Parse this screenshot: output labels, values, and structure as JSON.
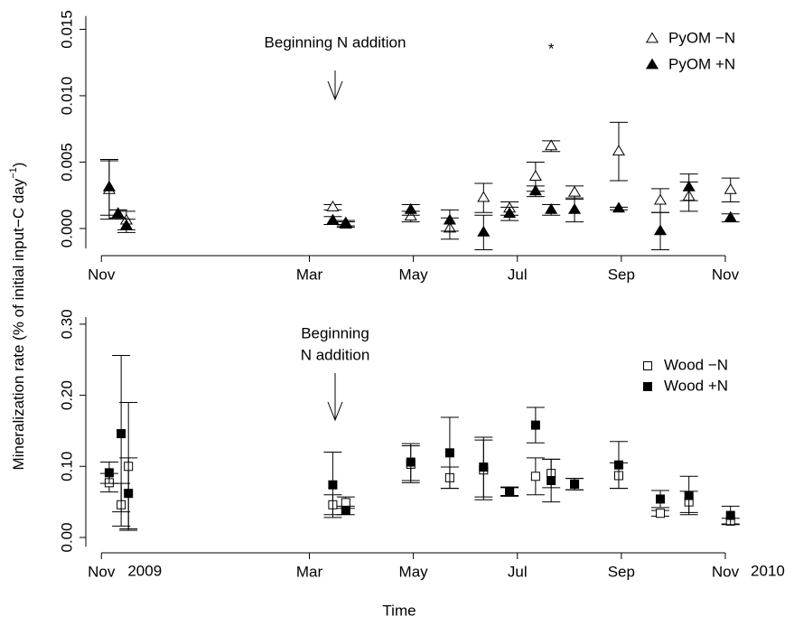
{
  "chart_data": [
    {
      "type": "scatter",
      "annotation": [
        "Beginning N addition"
      ],
      "significance": "*",
      "significance_x": 8.65,
      "x": [
        0.15,
        0.32,
        0.48,
        4.45,
        4.7,
        5.95,
        6.7,
        7.35,
        7.85,
        8.35,
        8.65,
        9.1,
        9.95,
        10.75,
        11.3,
        12.1
      ],
      "xlim": [
        -0.3,
        12.4
      ],
      "xticks": [
        {
          "value": 0,
          "label": "Nov"
        },
        {
          "value": 4,
          "label": "Mar"
        },
        {
          "value": 6,
          "label": "May"
        },
        {
          "value": 8,
          "label": "Jul"
        },
        {
          "value": 10,
          "label": "Sep"
        },
        {
          "value": 12,
          "label": "Nov"
        }
      ],
      "ylim": [
        -0.0015,
        0.016
      ],
      "yticks": [
        {
          "value": 0,
          "label": "0.000"
        },
        {
          "value": 0.005,
          "label": "0.005"
        },
        {
          "value": 0.01,
          "label": "0.010"
        },
        {
          "value": 0.015,
          "label": "0.015"
        }
      ],
      "series": [
        {
          "name": "PyOM −N",
          "marker": "triangle",
          "filled": false,
          "color": "#000000",
          "values": [
            0.0029,
            0.0011,
            0.0006,
            0.0016,
            0.0004,
            0.0009,
            0.0,
            0.0023,
            0.0015,
            0.0039,
            0.0062,
            0.0027,
            0.0058,
            0.0021,
            0.0024,
            0.0029
          ],
          "errors": [
            0.0022,
            0.0003,
            0.0007,
            0.0002,
            0.0002,
            0.0004,
            0.0008,
            0.0011,
            0.0005,
            0.0011,
            0.0004,
            0.0005,
            0.0022,
            0.0009,
            0.0011,
            0.0009
          ]
        },
        {
          "name": "PyOM +N",
          "marker": "triangle",
          "filled": true,
          "color": "#000000",
          "values": [
            0.0031,
            0.0011,
            0.0002,
            0.0006,
            0.0003,
            0.0014,
            0.0006,
            -0.0003,
            0.0011,
            0.0028,
            0.0014,
            0.0014,
            0.0015,
            -0.0002,
            0.0031,
            0.0008
          ],
          "errors": [
            0.0021,
            0.0003,
            0.0005,
            0.0003,
            0.0002,
            0.0004,
            0.0008,
            0.0013,
            0.0005,
            0.0004,
            0.0004,
            0.0009,
            0.0001,
            0.0014,
            0.001,
            0.0003
          ]
        }
      ]
    },
    {
      "type": "scatter",
      "annotation": [
        "Beginning",
        "N addition"
      ],
      "year_labels": [
        "2009",
        "2010"
      ],
      "x": [
        0.15,
        0.38,
        0.52,
        4.45,
        4.7,
        5.95,
        6.7,
        7.35,
        7.85,
        8.35,
        8.65,
        9.1,
        9.95,
        10.75,
        11.3,
        12.1
      ],
      "xlim": [
        -0.3,
        12.4
      ],
      "xticks": [
        {
          "value": 0,
          "label": "Nov"
        },
        {
          "value": 4,
          "label": "Mar"
        },
        {
          "value": 6,
          "label": "May"
        },
        {
          "value": 8,
          "label": "Jul"
        },
        {
          "value": 10,
          "label": "Sep"
        },
        {
          "value": 12,
          "label": "Nov"
        }
      ],
      "ylim": [
        -0.013,
        0.31
      ],
      "yticks": [
        {
          "value": 0,
          "label": "0.00"
        },
        {
          "value": 0.1,
          "label": "0.10"
        },
        {
          "value": 0.2,
          "label": "0.20"
        },
        {
          "value": 0.3,
          "label": "0.30"
        }
      ],
      "series": [
        {
          "name": "Wood −N",
          "marker": "square",
          "filled": false,
          "color": "#000000",
          "values": [
            0.077,
            0.046,
            0.1,
            0.046,
            0.049,
            0.103,
            0.084,
            0.095,
            0.064,
            0.086,
            0.09,
            0.075,
            0.087,
            0.034,
            0.05,
            0.023
          ],
          "errors": [
            0.013,
            0.03,
            0.09,
            0.014,
            0.008,
            0.026,
            0.015,
            0.042,
            0.006,
            0.026,
            0.02,
            0.008,
            0.018,
            0.004,
            0.015,
            0.004
          ]
        },
        {
          "name": "Wood +N",
          "marker": "square",
          "filled": true,
          "color": "#000000",
          "values": [
            0.091,
            0.146,
            0.062,
            0.074,
            0.038,
            0.106,
            0.119,
            0.099,
            0.065,
            0.158,
            0.08,
            0.075,
            0.102,
            0.054,
            0.059,
            0.031
          ],
          "errors": [
            0.015,
            0.11,
            0.05,
            0.046,
            0.006,
            0.026,
            0.05,
            0.042,
            0.006,
            0.025,
            0.03,
            0.008,
            0.033,
            0.012,
            0.027,
            0.013
          ]
        }
      ]
    }
  ],
  "shared": {
    "ylabel": [
      "Mineralization rate (% of initial input−C day",
      "−1",
      ")"
    ],
    "xlabel": "Time"
  }
}
